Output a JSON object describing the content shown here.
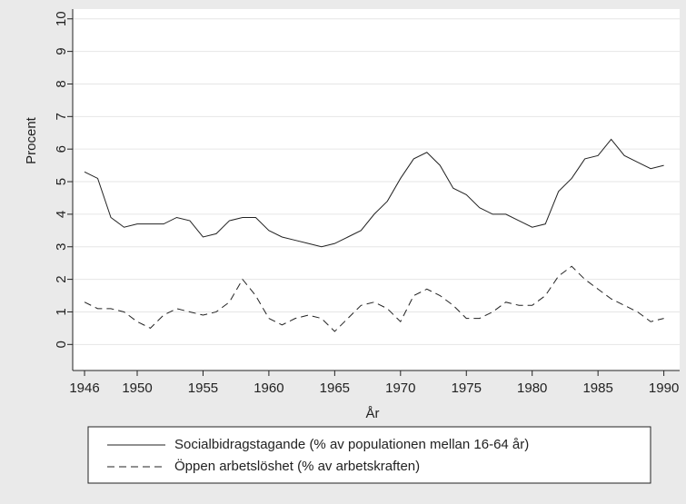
{
  "chart_data": {
    "type": "line",
    "x_label": "År",
    "y_label": "Procent",
    "x": [
      1946,
      1947,
      1948,
      1949,
      1950,
      1951,
      1952,
      1953,
      1954,
      1955,
      1956,
      1957,
      1958,
      1959,
      1960,
      1961,
      1962,
      1963,
      1964,
      1965,
      1966,
      1967,
      1968,
      1969,
      1970,
      1971,
      1972,
      1973,
      1974,
      1975,
      1976,
      1977,
      1978,
      1979,
      1980,
      1981,
      1982,
      1983,
      1984,
      1985,
      1986,
      1987,
      1988,
      1989,
      1990
    ],
    "series": [
      {
        "name": "Socialbidragstagande (% av populationen mellan 16-64 år)",
        "color": "#222222",
        "style": "solid",
        "values": [
          5.3,
          5.1,
          3.9,
          3.6,
          3.7,
          3.7,
          3.7,
          3.9,
          3.8,
          3.3,
          3.4,
          3.8,
          3.9,
          3.9,
          3.5,
          3.3,
          3.2,
          3.1,
          3.0,
          3.1,
          3.3,
          3.5,
          4.0,
          4.4,
          5.1,
          5.7,
          5.9,
          5.5,
          4.8,
          4.6,
          4.2,
          4.0,
          4.0,
          3.8,
          3.6,
          3.7,
          4.7,
          5.1,
          5.7,
          5.8,
          6.3,
          5.8,
          5.6,
          5.4,
          5.5
        ]
      },
      {
        "name": "Öppen arbetslöshet (% av arbetskraften)",
        "color": "#222222",
        "style": "dashed",
        "values": [
          1.3,
          1.1,
          1.1,
          1.0,
          0.7,
          0.5,
          0.9,
          1.1,
          1.0,
          0.9,
          1.0,
          1.3,
          2.0,
          1.5,
          0.8,
          0.6,
          0.8,
          0.9,
          0.8,
          0.4,
          0.8,
          1.2,
          1.3,
          1.1,
          0.7,
          1.5,
          1.7,
          1.5,
          1.2,
          0.8,
          0.8,
          1.0,
          1.3,
          1.2,
          1.2,
          1.5,
          2.1,
          2.4,
          2.0,
          1.7,
          1.4,
          1.2,
          1.0,
          0.7,
          0.8
        ]
      }
    ],
    "xlim": [
      1945.1,
      1991.2
    ],
    "xticks": [
      1946,
      1950,
      1955,
      1960,
      1965,
      1970,
      1975,
      1980,
      1985,
      1990
    ],
    "ylim": [
      -0.8,
      10.3
    ],
    "yticks": [
      0,
      1,
      2,
      3,
      4,
      5,
      6,
      7,
      8,
      9,
      10
    ],
    "grid": true,
    "legend": "bottom"
  }
}
